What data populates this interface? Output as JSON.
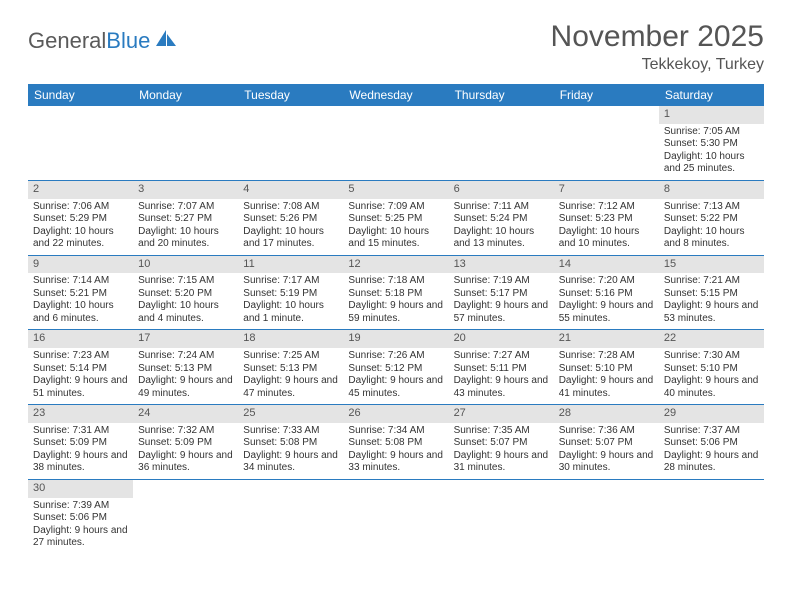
{
  "logo": {
    "text1": "General",
    "text2": "Blue"
  },
  "title": "November 2025",
  "location": "Tekkekoy, Turkey",
  "weekdays": [
    "Sunday",
    "Monday",
    "Tuesday",
    "Wednesday",
    "Thursday",
    "Friday",
    "Saturday"
  ],
  "colors": {
    "accent": "#2a7bc0",
    "daynum_bg": "#e4e4e4"
  },
  "days": [
    null,
    null,
    null,
    null,
    null,
    null,
    {
      "n": "1",
      "sr": "7:05 AM",
      "ss": "5:30 PM",
      "dl": "10 hours and 25 minutes."
    },
    {
      "n": "2",
      "sr": "7:06 AM",
      "ss": "5:29 PM",
      "dl": "10 hours and 22 minutes."
    },
    {
      "n": "3",
      "sr": "7:07 AM",
      "ss": "5:27 PM",
      "dl": "10 hours and 20 minutes."
    },
    {
      "n": "4",
      "sr": "7:08 AM",
      "ss": "5:26 PM",
      "dl": "10 hours and 17 minutes."
    },
    {
      "n": "5",
      "sr": "7:09 AM",
      "ss": "5:25 PM",
      "dl": "10 hours and 15 minutes."
    },
    {
      "n": "6",
      "sr": "7:11 AM",
      "ss": "5:24 PM",
      "dl": "10 hours and 13 minutes."
    },
    {
      "n": "7",
      "sr": "7:12 AM",
      "ss": "5:23 PM",
      "dl": "10 hours and 10 minutes."
    },
    {
      "n": "8",
      "sr": "7:13 AM",
      "ss": "5:22 PM",
      "dl": "10 hours and 8 minutes."
    },
    {
      "n": "9",
      "sr": "7:14 AM",
      "ss": "5:21 PM",
      "dl": "10 hours and 6 minutes."
    },
    {
      "n": "10",
      "sr": "7:15 AM",
      "ss": "5:20 PM",
      "dl": "10 hours and 4 minutes."
    },
    {
      "n": "11",
      "sr": "7:17 AM",
      "ss": "5:19 PM",
      "dl": "10 hours and 1 minute."
    },
    {
      "n": "12",
      "sr": "7:18 AM",
      "ss": "5:18 PM",
      "dl": "9 hours and 59 minutes."
    },
    {
      "n": "13",
      "sr": "7:19 AM",
      "ss": "5:17 PM",
      "dl": "9 hours and 57 minutes."
    },
    {
      "n": "14",
      "sr": "7:20 AM",
      "ss": "5:16 PM",
      "dl": "9 hours and 55 minutes."
    },
    {
      "n": "15",
      "sr": "7:21 AM",
      "ss": "5:15 PM",
      "dl": "9 hours and 53 minutes."
    },
    {
      "n": "16",
      "sr": "7:23 AM",
      "ss": "5:14 PM",
      "dl": "9 hours and 51 minutes."
    },
    {
      "n": "17",
      "sr": "7:24 AM",
      "ss": "5:13 PM",
      "dl": "9 hours and 49 minutes."
    },
    {
      "n": "18",
      "sr": "7:25 AM",
      "ss": "5:13 PM",
      "dl": "9 hours and 47 minutes."
    },
    {
      "n": "19",
      "sr": "7:26 AM",
      "ss": "5:12 PM",
      "dl": "9 hours and 45 minutes."
    },
    {
      "n": "20",
      "sr": "7:27 AM",
      "ss": "5:11 PM",
      "dl": "9 hours and 43 minutes."
    },
    {
      "n": "21",
      "sr": "7:28 AM",
      "ss": "5:10 PM",
      "dl": "9 hours and 41 minutes."
    },
    {
      "n": "22",
      "sr": "7:30 AM",
      "ss": "5:10 PM",
      "dl": "9 hours and 40 minutes."
    },
    {
      "n": "23",
      "sr": "7:31 AM",
      "ss": "5:09 PM",
      "dl": "9 hours and 38 minutes."
    },
    {
      "n": "24",
      "sr": "7:32 AM",
      "ss": "5:09 PM",
      "dl": "9 hours and 36 minutes."
    },
    {
      "n": "25",
      "sr": "7:33 AM",
      "ss": "5:08 PM",
      "dl": "9 hours and 34 minutes."
    },
    {
      "n": "26",
      "sr": "7:34 AM",
      "ss": "5:08 PM",
      "dl": "9 hours and 33 minutes."
    },
    {
      "n": "27",
      "sr": "7:35 AM",
      "ss": "5:07 PM",
      "dl": "9 hours and 31 minutes."
    },
    {
      "n": "28",
      "sr": "7:36 AM",
      "ss": "5:07 PM",
      "dl": "9 hours and 30 minutes."
    },
    {
      "n": "29",
      "sr": "7:37 AM",
      "ss": "5:06 PM",
      "dl": "9 hours and 28 minutes."
    },
    {
      "n": "30",
      "sr": "7:39 AM",
      "ss": "5:06 PM",
      "dl": "9 hours and 27 minutes."
    },
    null,
    null,
    null,
    null,
    null,
    null
  ],
  "labels": {
    "sunrise": "Sunrise: ",
    "sunset": "Sunset: ",
    "daylight": "Daylight: "
  }
}
